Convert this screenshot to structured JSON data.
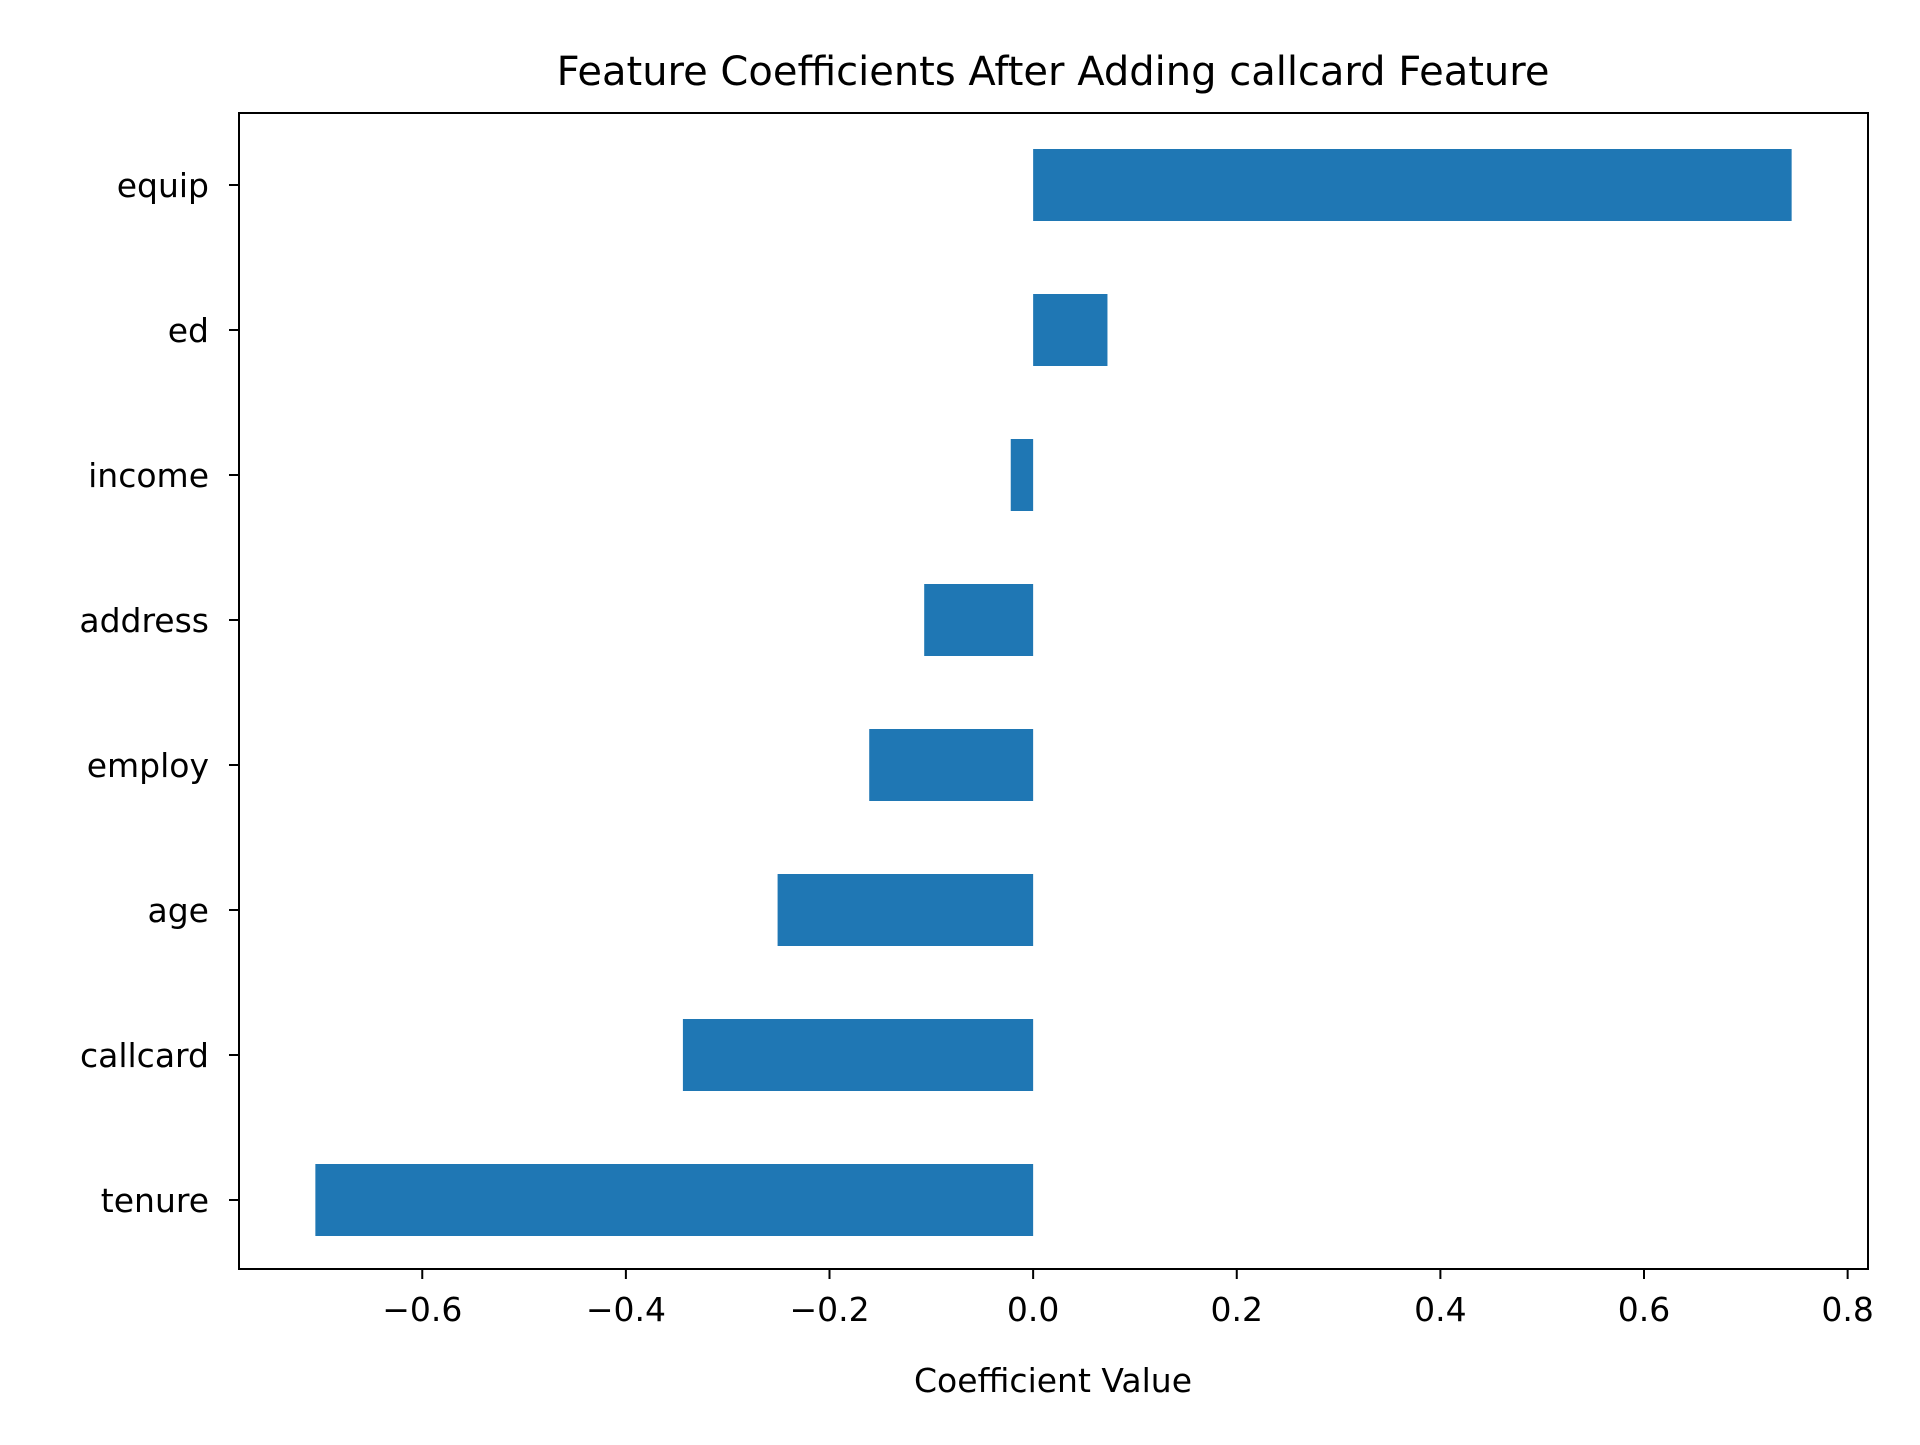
{
  "chart_data": {
    "type": "bar",
    "orientation": "horizontal",
    "title": "Feature Coefficients After Adding callcard Feature",
    "xlabel": "Coefficient Value",
    "ylabel": "",
    "categories": [
      "equip",
      "ed",
      "income",
      "address",
      "employ",
      "age",
      "callcard",
      "tenure"
    ],
    "values": [
      0.745,
      0.073,
      -0.022,
      -0.107,
      -0.161,
      -0.251,
      -0.344,
      -0.705
    ],
    "xlim": [
      -0.78,
      0.82
    ],
    "xticks": [
      -0.6,
      -0.4,
      -0.2,
      0.0,
      0.2,
      0.4,
      0.6,
      0.8
    ],
    "xtick_labels": [
      "−0.6",
      "−0.4",
      "−0.2",
      "0.0",
      "0.2",
      "0.4",
      "0.6",
      "0.8"
    ],
    "grid": false,
    "bar_color": "#1f77b4"
  }
}
